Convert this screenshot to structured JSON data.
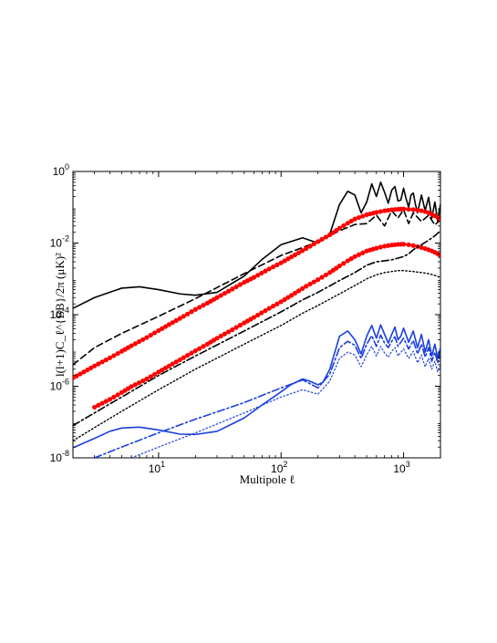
{
  "chart_data": {
    "type": "line",
    "title": "",
    "xlabel": "Multipole ℓ",
    "ylabel": "l(l+1)C_ℓ^{BB}/2π (μK)²",
    "xscale": "log",
    "yscale": "log",
    "xlim": [
      2,
      2000
    ],
    "ylim": [
      1e-08,
      1
    ],
    "grid": false,
    "legend": "none",
    "x_ticks": [
      {
        "value": 10,
        "base": "10",
        "exp": "1"
      },
      {
        "value": 100,
        "base": "10",
        "exp": "2"
      },
      {
        "value": 1000,
        "base": "10",
        "exp": "3"
      }
    ],
    "y_ticks": [
      {
        "value": 1e-08,
        "base": "10",
        "exp": "-8"
      },
      {
        "value": 1e-06,
        "base": "10",
        "exp": "-6"
      },
      {
        "value": 0.0001,
        "base": "10",
        "exp": "-4"
      },
      {
        "value": 0.01,
        "base": "10",
        "exp": "-2"
      },
      {
        "value": 1,
        "base": "10",
        "exp": "0"
      }
    ],
    "series": [
      {
        "color": "#000000",
        "dash": "solid",
        "width": 1.6,
        "markers": false,
        "x": [
          2,
          3,
          5,
          7,
          10,
          15,
          20,
          30,
          50,
          70,
          100,
          150,
          200,
          250,
          300,
          350,
          400,
          450,
          500,
          550,
          600,
          650,
          700,
          750,
          800,
          850,
          900,
          950,
          1000,
          1050,
          1100,
          1150,
          1200,
          1250,
          1300,
          1400,
          1500,
          1600,
          1700,
          1800,
          1900,
          2000
        ],
        "y": [
          0.00015,
          0.0003,
          0.00055,
          0.0006,
          0.0005,
          0.00038,
          0.00035,
          0.00042,
          0.0012,
          0.0035,
          0.009,
          0.014,
          0.01,
          0.018,
          0.12,
          0.28,
          0.22,
          0.07,
          0.14,
          0.45,
          0.2,
          0.5,
          0.26,
          0.13,
          0.3,
          0.38,
          0.15,
          0.16,
          0.34,
          0.17,
          0.1,
          0.22,
          0.25,
          0.12,
          0.07,
          0.22,
          0.08,
          0.19,
          0.05,
          0.14,
          0.04,
          0.12
        ]
      },
      {
        "color": "#000000",
        "dash": "dashed",
        "width": 1.6,
        "markers": false,
        "x": [
          2,
          3,
          5,
          10,
          20,
          50,
          100,
          150,
          200,
          300,
          400,
          500,
          600,
          700,
          800,
          900,
          1000,
          1100,
          1200,
          1400,
          1600,
          1800,
          2000
        ],
        "y": [
          4e-06,
          1.2e-05,
          3e-05,
          9e-05,
          0.00028,
          0.0014,
          0.0045,
          0.0075,
          0.011,
          0.022,
          0.033,
          0.035,
          0.06,
          0.03,
          0.08,
          0.05,
          0.085,
          0.035,
          0.07,
          0.04,
          0.06,
          0.032,
          0.045
        ]
      },
      {
        "color": "#ff0000",
        "dash": "solid",
        "width": 2.2,
        "markers": true,
        "x": [
          2,
          3,
          4,
          5,
          6,
          8,
          10,
          13,
          16,
          20,
          25,
          30,
          40,
          50,
          60,
          80,
          100,
          130,
          160,
          200,
          250,
          300,
          350,
          400,
          500,
          600,
          700,
          800,
          900,
          1000,
          1100,
          1200,
          1300,
          1400,
          1500,
          1600,
          1700,
          1800,
          1900,
          2000
        ],
        "y": [
          1.7e-06,
          3.7e-06,
          6.2e-06,
          9.5e-06,
          1.35e-05,
          2.3e-05,
          3.6e-05,
          6e-05,
          9e-05,
          0.00014,
          0.00021,
          0.0003,
          0.00052,
          0.0008,
          0.0011,
          0.0019,
          0.0028,
          0.0047,
          0.007,
          0.011,
          0.017,
          0.026,
          0.036,
          0.047,
          0.062,
          0.072,
          0.08,
          0.085,
          0.088,
          0.09,
          0.088,
          0.086,
          0.083,
          0.08,
          0.076,
          0.07,
          0.064,
          0.058,
          0.052,
          0.045
        ]
      },
      {
        "color": "#ff0000",
        "dash": "solid",
        "width": 2.2,
        "markers": true,
        "x": [
          3,
          4,
          5,
          6,
          8,
          10,
          13,
          16,
          20,
          25,
          30,
          40,
          50,
          60,
          80,
          100,
          130,
          160,
          200,
          250,
          300,
          350,
          400,
          500,
          600,
          700,
          800,
          900,
          1000,
          1100,
          1200,
          1300,
          1400,
          1500,
          1600,
          1700,
          1800,
          1900,
          2000
        ],
        "y": [
          2.6e-07,
          4.3e-07,
          6.7e-07,
          9.8e-07,
          1.6e-06,
          2.5e-06,
          4.2e-06,
          6.3e-06,
          9.8e-06,
          1.5e-05,
          2.2e-05,
          3.8e-05,
          5.9e-05,
          8.4e-05,
          0.00015,
          0.00023,
          0.0004,
          0.00062,
          0.00095,
          0.0015,
          0.0023,
          0.0032,
          0.0042,
          0.006,
          0.0072,
          0.0082,
          0.0088,
          0.0092,
          0.0093,
          0.009,
          0.0085,
          0.008,
          0.0075,
          0.007,
          0.0065,
          0.006,
          0.0055,
          0.005,
          0.0045
        ]
      },
      {
        "color": "#000000",
        "dash": "dashdot",
        "width": 1.6,
        "markers": false,
        "x": [
          2,
          3,
          5,
          10,
          20,
          50,
          100,
          150,
          200,
          300,
          400,
          500,
          600,
          700,
          800,
          900,
          1000,
          1100,
          1200,
          1400,
          1600,
          1800,
          2000
        ],
        "y": [
          8e-08,
          1.8e-07,
          5e-07,
          2e-06,
          7e-06,
          3.5e-05,
          0.00012,
          0.00026,
          0.00042,
          0.0009,
          0.0015,
          0.0024,
          0.003,
          0.0032,
          0.0034,
          0.0038,
          0.0042,
          0.005,
          0.0065,
          0.009,
          0.012,
          0.016,
          0.022
        ]
      },
      {
        "color": "#000000",
        "dash": "dotted",
        "width": 1.4,
        "markers": false,
        "x": [
          2,
          3,
          5,
          10,
          20,
          50,
          100,
          150,
          200,
          300,
          400,
          500,
          600,
          700,
          800,
          900,
          1000,
          1100,
          1200,
          1400,
          1600,
          1800,
          2000
        ],
        "y": [
          3e-08,
          7e-08,
          2e-07,
          8e-07,
          3e-06,
          1.5e-05,
          5e-05,
          0.00011,
          0.00018,
          0.00038,
          0.00065,
          0.001,
          0.0013,
          0.0015,
          0.0016,
          0.0017,
          0.0017,
          0.00165,
          0.0016,
          0.0015,
          0.0014,
          0.00125,
          0.0011
        ]
      },
      {
        "color": "#1a3fe0",
        "dash": "solid",
        "width": 1.6,
        "markers": false,
        "x": [
          2,
          3,
          4,
          5,
          7,
          10,
          15,
          20,
          30,
          50,
          70,
          100,
          120,
          150,
          170,
          200,
          220,
          250,
          300,
          350,
          400,
          450,
          500,
          550,
          600,
          650,
          700,
          750,
          800,
          850,
          900,
          950,
          1000,
          1100,
          1200,
          1300,
          1400,
          1500,
          1600,
          1700,
          1800,
          1900,
          2000
        ],
        "y": [
          1.9e-08,
          3.5e-08,
          5.5e-08,
          6.8e-08,
          7.2e-08,
          6e-08,
          4.6e-08,
          4.5e-08,
          5.5e-08,
          1.3e-07,
          3e-07,
          7e-07,
          1.1e-06,
          1.6e-06,
          1.4e-06,
          1.1e-06,
          1.3e-06,
          3e-06,
          2.5e-05,
          3.5e-05,
          2e-05,
          8e-06,
          2.5e-05,
          5e-05,
          2.2e-05,
          5.2e-05,
          2.8e-05,
          1.6e-05,
          2.8e-05,
          4.5e-05,
          2e-05,
          2.5e-05,
          4.2e-05,
          1.7e-05,
          3.5e-05,
          1.2e-05,
          2.8e-05,
          9e-06,
          2e-05,
          7e-06,
          1.5e-05,
          6e-06,
          1.2e-05
        ]
      },
      {
        "color": "#1a3fe0",
        "dash": "dashdot",
        "width": 1.6,
        "markers": false,
        "x": [
          3,
          5,
          10,
          20,
          50,
          100,
          150,
          200,
          250,
          300,
          350,
          400,
          450,
          500,
          550,
          600,
          650,
          700,
          750,
          800,
          850,
          900,
          1000,
          1100,
          1200,
          1300,
          1400,
          1500,
          1600,
          1700,
          1800,
          1900,
          2000
        ],
        "y": [
          1e-08,
          2e-08,
          5e-08,
          1.2e-07,
          3.5e-07,
          9e-07,
          1.5e-06,
          9e-07,
          2.2e-06,
          1.2e-05,
          1.8e-05,
          1.4e-05,
          6e-06,
          1.5e-05,
          2.6e-05,
          1.3e-05,
          2.7e-05,
          1.6e-05,
          1.2e-05,
          1.8e-05,
          2.4e-05,
          1.3e-05,
          2.2e-05,
          1.1e-05,
          1.9e-05,
          8e-06,
          1.5e-05,
          6.5e-06,
          1.2e-05,
          5e-06,
          9e-06,
          4.5e-06,
          8e-06
        ]
      },
      {
        "color": "#1a3fe0",
        "dash": "dotted",
        "width": 1.2,
        "markers": false,
        "x": [
          6,
          10,
          20,
          50,
          100,
          150,
          200,
          250,
          300,
          350,
          400,
          450,
          500,
          550,
          600,
          650,
          700,
          750,
          800,
          850,
          900,
          1000,
          1100,
          1200,
          1300,
          1400,
          1500,
          1600,
          1700,
          1800,
          1900,
          2000
        ],
        "y": [
          1e-08,
          2e-08,
          5e-08,
          1.8e-07,
          5e-07,
          8e-07,
          6e-07,
          1.4e-06,
          6e-06,
          9e-06,
          7.5e-06,
          3.5e-06,
          7.5e-06,
          1.3e-05,
          7e-06,
          1.3e-05,
          8.5e-06,
          6.5e-06,
          9.5e-06,
          1.2e-05,
          7e-06,
          1.1e-05,
          6e-06,
          9.5e-06,
          4.5e-06,
          7.5e-06,
          3.5e-06,
          6e-06,
          3e-06,
          5e-06,
          2.5e-06,
          4e-06
        ]
      }
    ]
  }
}
